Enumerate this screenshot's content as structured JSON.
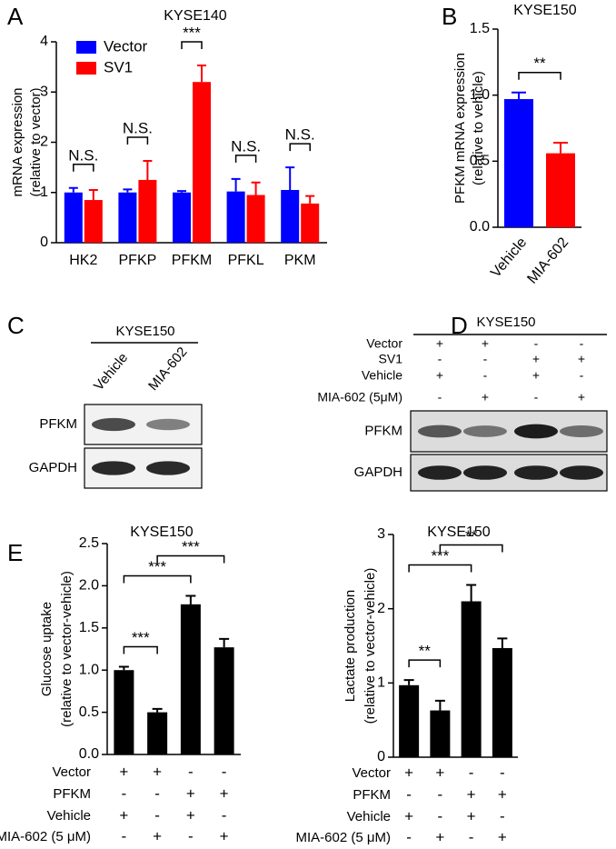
{
  "panel_labels": [
    "A",
    "B",
    "C",
    "D",
    "E"
  ],
  "chart_data": [
    {
      "type": "bar",
      "title": "KYSE140",
      "ylabel": [
        "mRNA expression",
        "(relative to vector)"
      ],
      "categories": [
        "HK2",
        "PFKP",
        "PFKM",
        "PFKL",
        "PKM"
      ],
      "series": [
        {
          "name": "Vector",
          "color": "#0000ff",
          "values": [
            1.0,
            1.0,
            1.0,
            1.02,
            1.05
          ],
          "errors": [
            0.09,
            0.06,
            0.03,
            0.25,
            0.45
          ]
        },
        {
          "name": "SV1",
          "color": "#ff0000",
          "values": [
            0.85,
            1.25,
            3.2,
            0.95,
            0.78
          ],
          "errors": [
            0.2,
            0.38,
            0.33,
            0.25,
            0.15
          ]
        }
      ],
      "significance": [
        "N.S.",
        "N.S.",
        "***",
        "N.S.",
        "N.S."
      ],
      "ylim": [
        0,
        4
      ],
      "yticks": [
        0,
        1,
        2,
        3,
        4
      ],
      "legend": "upper left"
    },
    {
      "type": "bar",
      "title": "KYSE150",
      "ylabel": [
        "PFKM mRNA expression",
        "(relative to vehicle)"
      ],
      "categories": [
        "Vehicle",
        "MIA-602"
      ],
      "values": [
        0.97,
        0.56
      ],
      "errors": [
        0.05,
        0.08
      ],
      "colors": [
        "#0000ff",
        "#ff0000"
      ],
      "comparisons": [
        {
          "label": "**",
          "between": [
            0,
            1
          ]
        }
      ],
      "ylim": [
        0,
        1.5
      ],
      "yticks": [
        {
          "value": 0,
          "label": "0.0"
        },
        {
          "value": 0.5,
          "label": "0.5"
        },
        {
          "value": 1,
          "label": "1.0"
        },
        {
          "value": 1.5,
          "label": "1.5"
        }
      ]
    },
    {
      "type": "bar",
      "title": "KYSE150",
      "ylabel": [
        "Glucose uptake",
        "(relative to vector-vehicle)"
      ],
      "values": [
        1.0,
        0.5,
        1.78,
        1.27
      ],
      "errors": [
        0.04,
        0.04,
        0.1,
        0.1
      ],
      "color": "#000000",
      "comparisons": [
        {
          "label": "***",
          "between": [
            0,
            1
          ]
        },
        {
          "label": "***",
          "between": [
            0,
            2
          ]
        },
        {
          "label": "***",
          "between": [
            1,
            3
          ]
        }
      ],
      "conditions": [
        {
          "label": "Vector",
          "signs": [
            "+",
            "+",
            "-",
            "-"
          ]
        },
        {
          "label": "PFKM",
          "signs": [
            "-",
            "-",
            "+",
            "+"
          ]
        },
        {
          "label": "Vehicle",
          "signs": [
            "+",
            "-",
            "+",
            "-"
          ]
        },
        {
          "label": "MIA-602 (5 μM)",
          "signs": [
            "-",
            "+",
            "-",
            "+"
          ]
        }
      ],
      "ylim": [
        0,
        2.5
      ],
      "yticks": [
        {
          "value": 0,
          "label": "0.0"
        },
        {
          "value": 0.5,
          "label": "0.5"
        },
        {
          "value": 1,
          "label": "1.0"
        },
        {
          "value": 1.5,
          "label": "1.5"
        },
        {
          "value": 2,
          "label": "2.0"
        },
        {
          "value": 2.5,
          "label": "2.5"
        }
      ]
    },
    {
      "type": "bar",
      "title": "KYSE150",
      "ylabel": [
        "Lactate production",
        "(relative to vector-vehicle)"
      ],
      "values": [
        0.97,
        0.63,
        2.1,
        1.47
      ],
      "errors": [
        0.07,
        0.13,
        0.22,
        0.13
      ],
      "color": "#000000",
      "comparisons": [
        {
          "label": "**",
          "between": [
            0,
            1
          ]
        },
        {
          "label": "***",
          "between": [
            0,
            2
          ]
        },
        {
          "label": "**",
          "between": [
            1,
            3
          ]
        }
      ],
      "conditions": [
        {
          "label": "Vector",
          "signs": [
            "+",
            "+",
            "-",
            "-"
          ]
        },
        {
          "label": "PFKM",
          "signs": [
            "-",
            "-",
            "+",
            "+"
          ]
        },
        {
          "label": "Vehicle",
          "signs": [
            "+",
            "-",
            "+",
            "-"
          ]
        },
        {
          "label": "MIA-602 (5 μM)",
          "signs": [
            "-",
            "+",
            "-",
            "+"
          ]
        }
      ],
      "ylim": [
        0,
        3
      ],
      "yticks": [
        0,
        1,
        2,
        3
      ]
    }
  ],
  "blots": [
    {
      "title": "KYSE150",
      "lanes": [
        "Vehicle",
        "MIA-602"
      ],
      "rows": [
        "PFKM",
        "GAPDH"
      ]
    },
    {
      "title": "KYSE150",
      "conditions": [
        {
          "label": "Vector",
          "signs": [
            "+",
            "+",
            "-",
            "-"
          ]
        },
        {
          "label": "SV1",
          "signs": [
            "-",
            "-",
            "+",
            "+"
          ]
        },
        {
          "label": "Vehicle",
          "signs": [
            "+",
            "-",
            "+",
            "-"
          ]
        },
        {
          "label": "MIA-602 (5μM)",
          "signs": [
            "-",
            "+",
            "-",
            "+"
          ]
        }
      ],
      "rows": [
        "PFKM",
        "GAPDH"
      ]
    }
  ]
}
